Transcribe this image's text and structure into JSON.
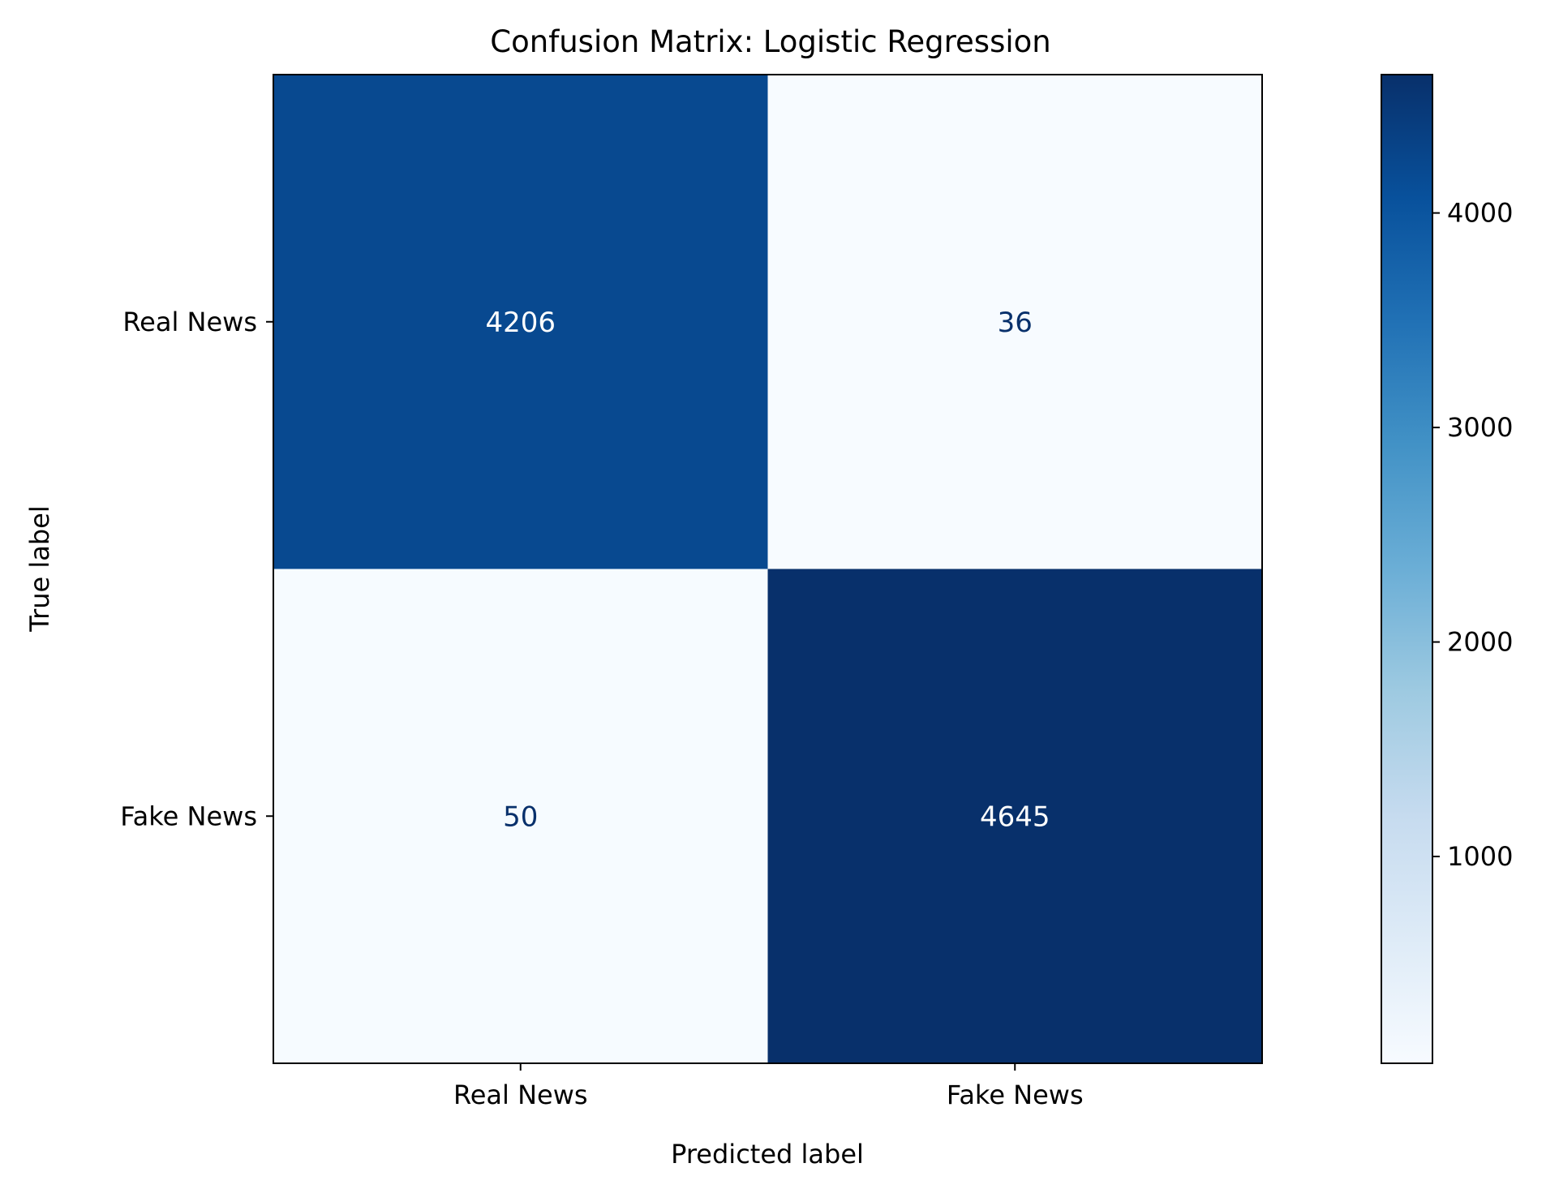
{
  "chart_data": {
    "type": "heatmap",
    "title": "Confusion Matrix: Logistic Regression",
    "xlabel": "Predicted label",
    "ylabel": "True label",
    "x_categories": [
      "Real News",
      "Fake News"
    ],
    "y_categories": [
      "Real News",
      "Fake News"
    ],
    "values": [
      [
        4206,
        36
      ],
      [
        50,
        4645
      ]
    ],
    "colormap": "Blues",
    "text_color_light": "#ffffff",
    "text_color_dark": "#08306b",
    "colorbar": {
      "vmin": 36,
      "vmax": 4645,
      "ticks": [
        1000,
        2000,
        3000,
        4000
      ],
      "tick_labels": [
        "1000",
        "2000",
        "3000",
        "4000"
      ]
    },
    "grid": false
  }
}
